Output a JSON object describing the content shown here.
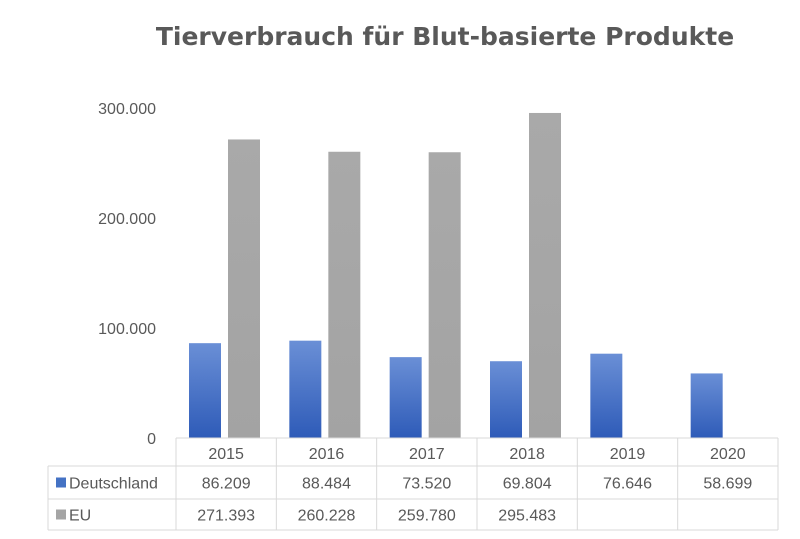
{
  "chart_data": {
    "type": "bar",
    "title": "Tierverbrauch für Blut-basierte Produkte",
    "categories": [
      "2015",
      "2016",
      "2017",
      "2018",
      "2019",
      "2020"
    ],
    "series": [
      {
        "name": "Deutschland",
        "values": [
          86209,
          88484,
          73520,
          69804,
          76646,
          58699
        ],
        "labels": [
          "86.209",
          "88.484",
          "73.520",
          "69.804",
          "76.646",
          "58.699"
        ],
        "color": "#4472C4"
      },
      {
        "name": "EU",
        "values": [
          271393,
          260228,
          259780,
          295483,
          null,
          null
        ],
        "labels": [
          "271.393",
          "260.228",
          "259.780",
          "295.483",
          "",
          ""
        ],
        "color": "#A5A5A5"
      }
    ],
    "ylim": [
      0,
      300000
    ],
    "yticks": [
      0,
      100000,
      200000,
      300000
    ],
    "ytick_labels": [
      "0",
      "100.000",
      "200.000",
      "300.000"
    ],
    "grid": false,
    "legend": "data-table"
  }
}
